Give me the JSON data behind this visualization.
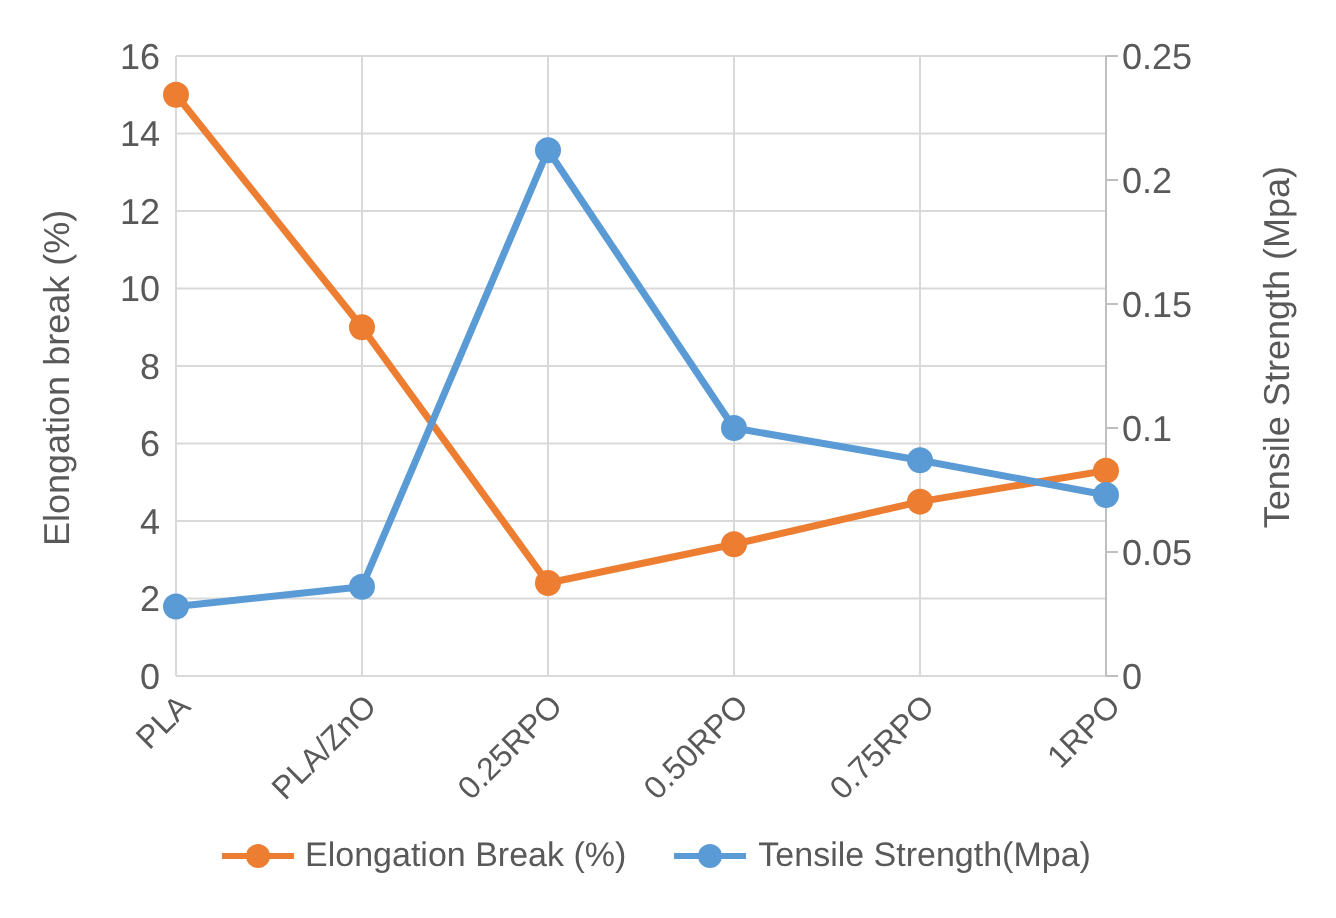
{
  "chart_data": {
    "type": "line",
    "categories": [
      "PLA",
      "PLA/ZnO",
      "0.25RPO",
      "0.50RPO",
      "0.75RPO",
      "1RPO"
    ],
    "series": [
      {
        "name": "Elongation Break (%)",
        "color": "#ed7d31",
        "values": [
          15,
          9,
          2.4,
          3.4,
          4.5,
          5.3
        ]
      },
      {
        "name": "Tensile Strength(Mpa)",
        "color": "#5b9bd5",
        "values": [
          0.028,
          0.036,
          0.212,
          0.1,
          0.087,
          0.073
        ],
        "axis": "y2"
      }
    ],
    "ylabel": "Elongation break (%)",
    "y2label": "Tensile Strength (Mpa)",
    "ylim": [
      0,
      16
    ],
    "yticks": [
      0,
      2,
      4,
      6,
      8,
      10,
      12,
      14,
      16
    ],
    "y2lim": [
      0,
      0.25
    ],
    "y2ticks": [
      0,
      0.05,
      0.1,
      0.15,
      0.2,
      0.25
    ],
    "grid": true,
    "legend": "bottom",
    "marker": "circle",
    "line_style": "solid"
  }
}
